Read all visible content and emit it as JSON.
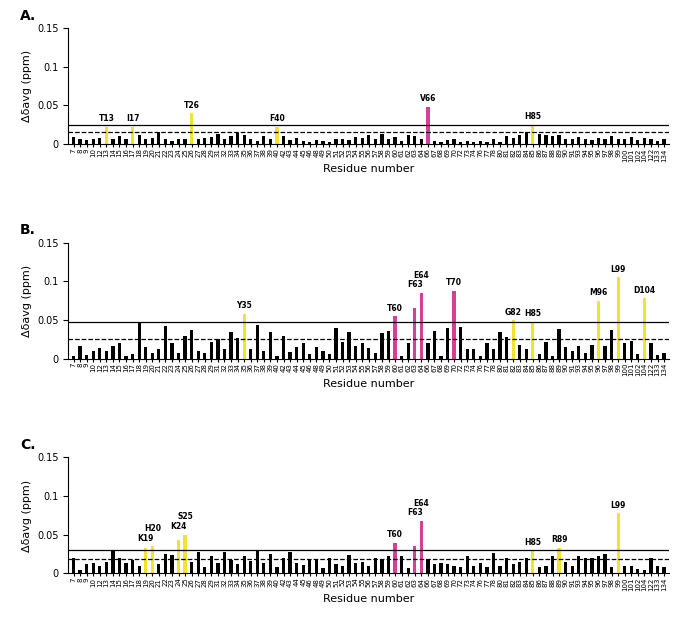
{
  "chart_data": [
    {
      "type": "bar",
      "title": "A.",
      "xlabel": "Residue number",
      "ylabel": "Δδavg (ppm)",
      "categories": [
        "7",
        "8",
        "9",
        "10",
        "12",
        "13",
        "14",
        "15",
        "16",
        "17",
        "18",
        "19",
        "20",
        "21",
        "22",
        "23",
        "24",
        "25",
        "26",
        "27",
        "28",
        "29",
        "31",
        "32",
        "33",
        "34",
        "35",
        "36",
        "37",
        "38",
        "39",
        "40",
        "42",
        "43",
        "44",
        "45",
        "46",
        "48",
        "49",
        "50",
        "51",
        "52",
        "53",
        "54",
        "55",
        "56",
        "57",
        "58",
        "59",
        "60",
        "61",
        "62",
        "63",
        "64",
        "66",
        "67",
        "68",
        "69",
        "70",
        "72",
        "73",
        "74",
        "76",
        "77",
        "78",
        "80",
        "81",
        "82",
        "83",
        "84",
        "85",
        "86",
        "87",
        "88",
        "89",
        "90",
        "91",
        "93",
        "94",
        "95",
        "96",
        "97",
        "98",
        "99",
        "100",
        "101",
        "102",
        "104",
        "122",
        "133",
        "134"
      ],
      "values": [
        0.009,
        0.007,
        0.005,
        0.006,
        0.008,
        0.022,
        0.006,
        0.01,
        0.007,
        0.022,
        0.012,
        0.006,
        0.008,
        0.015,
        0.006,
        0.004,
        0.007,
        0.006,
        0.04,
        0.006,
        0.008,
        0.009,
        0.013,
        0.006,
        0.01,
        0.014,
        0.011,
        0.006,
        0.004,
        0.01,
        0.006,
        0.022,
        0.01,
        0.005,
        0.008,
        0.004,
        0.003,
        0.005,
        0.004,
        0.003,
        0.007,
        0.006,
        0.005,
        0.009,
        0.008,
        0.011,
        0.006,
        0.013,
        0.006,
        0.009,
        0.004,
        0.012,
        0.01,
        0.007,
        0.048,
        0.004,
        0.003,
        0.005,
        0.006,
        0.003,
        0.004,
        0.003,
        0.004,
        0.003,
        0.006,
        0.003,
        0.01,
        0.008,
        0.011,
        0.015,
        0.025,
        0.013,
        0.012,
        0.01,
        0.011,
        0.007,
        0.006,
        0.009,
        0.006,
        0.005,
        0.008,
        0.007,
        0.01,
        0.007,
        0.006,
        0.009,
        0.005,
        0.008,
        0.006,
        0.004,
        0.007
      ],
      "colors": [
        "#000000",
        "#000000",
        "#000000",
        "#000000",
        "#000000",
        "#f2e32c",
        "#000000",
        "#000000",
        "#000000",
        "#f2e32c",
        "#000000",
        "#000000",
        "#000000",
        "#000000",
        "#000000",
        "#000000",
        "#000000",
        "#000000",
        "#f2e32c",
        "#000000",
        "#000000",
        "#000000",
        "#000000",
        "#000000",
        "#000000",
        "#000000",
        "#000000",
        "#000000",
        "#000000",
        "#000000",
        "#000000",
        "#f2e32c",
        "#000000",
        "#000000",
        "#000000",
        "#000000",
        "#000000",
        "#000000",
        "#000000",
        "#000000",
        "#000000",
        "#000000",
        "#000000",
        "#000000",
        "#000000",
        "#000000",
        "#000000",
        "#000000",
        "#000000",
        "#000000",
        "#000000",
        "#000000",
        "#000000",
        "#000000",
        "#d63f97",
        "#000000",
        "#000000",
        "#000000",
        "#000000",
        "#000000",
        "#000000",
        "#000000",
        "#000000",
        "#000000",
        "#000000",
        "#000000",
        "#000000",
        "#000000",
        "#000000",
        "#000000",
        "#f2e32c",
        "#000000",
        "#000000",
        "#000000",
        "#000000",
        "#000000",
        "#000000",
        "#000000",
        "#000000",
        "#000000",
        "#000000",
        "#000000",
        "#000000",
        "#000000",
        "#000000",
        "#000000",
        "#000000",
        "#000000",
        "#000000",
        "#000000",
        "#000000"
      ],
      "ylim": [
        0,
        0.15
      ],
      "yticks": [
        0,
        0.05,
        0.1,
        0.15
      ],
      "reference_lines": [
        {
          "value": 0.024,
          "line_style": "solid"
        },
        {
          "value": 0.016,
          "line_style": "dashed"
        }
      ],
      "annotations": [
        {
          "category": "13",
          "text": "T13"
        },
        {
          "category": "17",
          "text": "I17"
        },
        {
          "category": "26",
          "text": "T26"
        },
        {
          "category": "40",
          "text": "F40"
        },
        {
          "category": "66",
          "text": "V66"
        },
        {
          "category": "85",
          "text": "H85"
        }
      ]
    },
    {
      "type": "bar",
      "title": "B.",
      "xlabel": "Residue number",
      "ylabel": "Δδavg (ppm)",
      "categories": [
        "7",
        "8",
        "9",
        "10",
        "12",
        "13",
        "14",
        "15",
        "16",
        "17",
        "18",
        "19",
        "20",
        "21",
        "22",
        "23",
        "24",
        "25",
        "26",
        "27",
        "28",
        "29",
        "31",
        "32",
        "33",
        "34",
        "35",
        "36",
        "37",
        "38",
        "39",
        "40",
        "42",
        "43",
        "44",
        "45",
        "46",
        "48",
        "49",
        "50",
        "51",
        "52",
        "53",
        "54",
        "55",
        "56",
        "57",
        "58",
        "59",
        "60",
        "61",
        "62",
        "63",
        "64",
        "66",
        "67",
        "68",
        "69",
        "70",
        "72",
        "73",
        "74",
        "76",
        "77",
        "78",
        "80",
        "81",
        "82",
        "83",
        "84",
        "85",
        "86",
        "87",
        "88",
        "89",
        "90",
        "91",
        "93",
        "94",
        "95",
        "96",
        "97",
        "98",
        "99",
        "100",
        "101",
        "102",
        "104",
        "122",
        "133",
        "134"
      ],
      "values": [
        0.003,
        0.017,
        0.005,
        0.01,
        0.014,
        0.01,
        0.017,
        0.02,
        0.004,
        0.006,
        0.047,
        0.015,
        0.008,
        0.012,
        0.042,
        0.02,
        0.008,
        0.03,
        0.037,
        0.01,
        0.008,
        0.021,
        0.025,
        0.012,
        0.035,
        0.027,
        0.058,
        0.012,
        0.043,
        0.01,
        0.034,
        0.004,
        0.03,
        0.009,
        0.015,
        0.02,
        0.006,
        0.015,
        0.01,
        0.006,
        0.04,
        0.021,
        0.035,
        0.017,
        0.02,
        0.014,
        0.007,
        0.033,
        0.036,
        0.055,
        0.004,
        0.02,
        0.065,
        0.085,
        0.02,
        0.036,
        0.004,
        0.04,
        0.088,
        0.041,
        0.012,
        0.013,
        0.004,
        0.02,
        0.012,
        0.034,
        0.028,
        0.05,
        0.018,
        0.012,
        0.048,
        0.006,
        0.022,
        0.004,
        0.038,
        0.015,
        0.01,
        0.016,
        0.007,
        0.018,
        0.075,
        0.016,
        0.037,
        0.105,
        0.02,
        0.023,
        0.006,
        0.078,
        0.02,
        0.005,
        0.008
      ],
      "colors": [
        "#000000",
        "#000000",
        "#000000",
        "#000000",
        "#000000",
        "#000000",
        "#000000",
        "#000000",
        "#000000",
        "#000000",
        "#000000",
        "#000000",
        "#000000",
        "#000000",
        "#000000",
        "#000000",
        "#000000",
        "#000000",
        "#000000",
        "#000000",
        "#000000",
        "#000000",
        "#000000",
        "#000000",
        "#000000",
        "#000000",
        "#f2e32c",
        "#000000",
        "#000000",
        "#000000",
        "#000000",
        "#000000",
        "#000000",
        "#000000",
        "#000000",
        "#000000",
        "#000000",
        "#000000",
        "#000000",
        "#000000",
        "#000000",
        "#000000",
        "#000000",
        "#000000",
        "#000000",
        "#000000",
        "#000000",
        "#000000",
        "#000000",
        "#d63f97",
        "#000000",
        "#000000",
        "#d63f97",
        "#d63f97",
        "#000000",
        "#000000",
        "#000000",
        "#000000",
        "#d63f97",
        "#000000",
        "#000000",
        "#000000",
        "#000000",
        "#000000",
        "#000000",
        "#000000",
        "#000000",
        "#f2e32c",
        "#000000",
        "#000000",
        "#f2e32c",
        "#000000",
        "#000000",
        "#000000",
        "#000000",
        "#000000",
        "#000000",
        "#000000",
        "#000000",
        "#000000",
        "#f2e32c",
        "#000000",
        "#000000",
        "#f2e32c",
        "#000000",
        "#000000",
        "#000000",
        "#f2e32c",
        "#000000",
        "#000000",
        "#000000"
      ],
      "ylim": [
        0,
        0.15
      ],
      "yticks": [
        0,
        0.05,
        0.1,
        0.15
      ],
      "reference_lines": [
        {
          "value": 0.048,
          "line_style": "solid"
        },
        {
          "value": 0.025,
          "line_style": "dashed"
        }
      ],
      "annotations": [
        {
          "category": "35",
          "text": "Y35"
        },
        {
          "category": "60",
          "text": "T60"
        },
        {
          "category": "63",
          "text": "F63"
        },
        {
          "category": "64",
          "text": "E64"
        },
        {
          "category": "70",
          "text": "T70"
        },
        {
          "category": "82",
          "text": "G82"
        },
        {
          "category": "85",
          "text": "H85"
        },
        {
          "category": "96",
          "text": "M96"
        },
        {
          "category": "99",
          "text": "L99"
        },
        {
          "category": "104",
          "text": "D104"
        }
      ]
    },
    {
      "type": "bar",
      "title": "C.",
      "xlabel": "Residue number",
      "ylabel": "Δδavg (ppm)",
      "categories": [
        "7",
        "8",
        "9",
        "10",
        "12",
        "13",
        "14",
        "15",
        "16",
        "17",
        "18",
        "19",
        "20",
        "21",
        "22",
        "23",
        "24",
        "25",
        "26",
        "27",
        "28",
        "29",
        "31",
        "32",
        "33",
        "34",
        "35",
        "36",
        "37",
        "38",
        "39",
        "40",
        "42",
        "43",
        "44",
        "45",
        "46",
        "48",
        "49",
        "50",
        "51",
        "52",
        "53",
        "54",
        "55",
        "56",
        "57",
        "58",
        "59",
        "60",
        "61",
        "62",
        "63",
        "64",
        "66",
        "67",
        "68",
        "69",
        "70",
        "72",
        "73",
        "74",
        "76",
        "77",
        "78",
        "80",
        "81",
        "82",
        "83",
        "84",
        "85",
        "86",
        "87",
        "88",
        "89",
        "90",
        "91",
        "93",
        "94",
        "95",
        "96",
        "97",
        "98",
        "99",
        "100",
        "101",
        "102",
        "104",
        "122",
        "133",
        "134"
      ],
      "values": [
        0.02,
        0.004,
        0.012,
        0.014,
        0.01,
        0.015,
        0.03,
        0.02,
        0.014,
        0.018,
        0.01,
        0.033,
        0.035,
        0.012,
        0.025,
        0.024,
        0.043,
        0.05,
        0.015,
        0.028,
        0.009,
        0.022,
        0.013,
        0.028,
        0.018,
        0.012,
        0.022,
        0.016,
        0.03,
        0.013,
        0.025,
        0.009,
        0.02,
        0.028,
        0.013,
        0.011,
        0.018,
        0.018,
        0.007,
        0.02,
        0.012,
        0.01,
        0.024,
        0.014,
        0.015,
        0.01,
        0.02,
        0.019,
        0.022,
        0.04,
        0.023,
        0.007,
        0.035,
        0.068,
        0.019,
        0.012,
        0.014,
        0.012,
        0.01,
        0.009,
        0.022,
        0.01,
        0.014,
        0.008,
        0.027,
        0.01,
        0.02,
        0.012,
        0.015,
        0.02,
        0.03,
        0.008,
        0.01,
        0.022,
        0.033,
        0.015,
        0.01,
        0.022,
        0.02,
        0.02,
        0.022,
        0.025,
        0.008,
        0.078,
        0.01,
        0.01,
        0.006,
        0.004,
        0.02,
        0.01,
        0.009
      ],
      "colors": [
        "#000000",
        "#000000",
        "#000000",
        "#000000",
        "#000000",
        "#000000",
        "#000000",
        "#000000",
        "#000000",
        "#000000",
        "#000000",
        "#f2e32c",
        "#f2e32c",
        "#000000",
        "#000000",
        "#000000",
        "#f2e32c",
        "#f2e32c",
        "#000000",
        "#000000",
        "#000000",
        "#000000",
        "#000000",
        "#000000",
        "#000000",
        "#000000",
        "#000000",
        "#000000",
        "#000000",
        "#000000",
        "#000000",
        "#000000",
        "#000000",
        "#000000",
        "#000000",
        "#000000",
        "#000000",
        "#000000",
        "#000000",
        "#000000",
        "#000000",
        "#000000",
        "#000000",
        "#000000",
        "#000000",
        "#000000",
        "#000000",
        "#000000",
        "#000000",
        "#d63f97",
        "#000000",
        "#000000",
        "#d63f97",
        "#d63f97",
        "#000000",
        "#000000",
        "#000000",
        "#000000",
        "#000000",
        "#000000",
        "#000000",
        "#000000",
        "#000000",
        "#000000",
        "#000000",
        "#000000",
        "#000000",
        "#000000",
        "#000000",
        "#000000",
        "#f2e32c",
        "#000000",
        "#000000",
        "#000000",
        "#f2e32c",
        "#000000",
        "#000000",
        "#000000",
        "#000000",
        "#000000",
        "#000000",
        "#000000",
        "#000000",
        "#f2e32c",
        "#000000",
        "#000000",
        "#000000",
        "#000000",
        "#000000",
        "#000000",
        "#000000"
      ],
      "ylim": [
        0,
        0.15
      ],
      "yticks": [
        0,
        0.05,
        0.1,
        0.15
      ],
      "reference_lines": [
        {
          "value": 0.031,
          "line_style": "solid"
        },
        {
          "value": 0.019,
          "line_style": "dashed"
        }
      ],
      "annotations": [
        {
          "category": "19",
          "text": "K19"
        },
        {
          "category": "20",
          "text": "H20"
        },
        {
          "category": "24",
          "text": "K24"
        },
        {
          "category": "25",
          "text": "S25"
        },
        {
          "category": "60",
          "text": "T60"
        },
        {
          "category": "63",
          "text": "F63"
        },
        {
          "category": "64",
          "text": "E64"
        },
        {
          "category": "85",
          "text": "H85"
        },
        {
          "category": "89",
          "text": "R89"
        },
        {
          "category": "99",
          "text": "L99"
        }
      ]
    }
  ]
}
